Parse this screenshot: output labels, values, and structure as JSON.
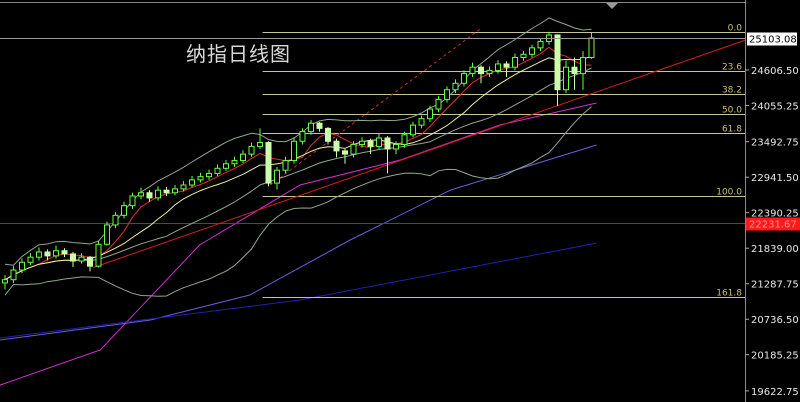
{
  "chart_data": {
    "type": "candlestick",
    "title": "纳指日线图",
    "ylim": [
      19500,
      25450
    ],
    "y_ticks": [
      "24606.50",
      "24055.25",
      "23492.75",
      "22941.50",
      "22390.25",
      "21839.00",
      "21287.75",
      "20736.50",
      "20185.25",
      "19622.75"
    ],
    "current_price": "25103.08",
    "marked_price": "22231.67",
    "candles": [
      [
        21300,
        21420,
        21200,
        21350
      ],
      [
        21350,
        21560,
        21300,
        21500
      ],
      [
        21500,
        21680,
        21450,
        21620
      ],
      [
        21620,
        21760,
        21580,
        21700
      ],
      [
        21700,
        21850,
        21650,
        21780
      ],
      [
        21780,
        21820,
        21650,
        21720
      ],
      [
        21720,
        21880,
        21680,
        21800
      ],
      [
        21800,
        21840,
        21700,
        21750
      ],
      [
        21750,
        21780,
        21550,
        21640
      ],
      [
        21640,
        21760,
        21600,
        21700
      ],
      [
        21700,
        21720,
        21480,
        21560
      ],
      [
        21560,
        21950,
        21540,
        21900
      ],
      [
        21900,
        22250,
        21880,
        22200
      ],
      [
        22200,
        22400,
        22150,
        22350
      ],
      [
        22350,
        22560,
        22300,
        22500
      ],
      [
        22500,
        22700,
        22450,
        22650
      ],
      [
        22650,
        22780,
        22600,
        22700
      ],
      [
        22700,
        22740,
        22560,
        22620
      ],
      [
        22620,
        22800,
        22580,
        22740
      ],
      [
        22740,
        22790,
        22650,
        22700
      ],
      [
        22700,
        22820,
        22660,
        22760
      ],
      [
        22760,
        22880,
        22720,
        22820
      ],
      [
        22820,
        22960,
        22780,
        22900
      ],
      [
        22900,
        23010,
        22860,
        22950
      ],
      [
        22950,
        23060,
        22900,
        23000
      ],
      [
        23000,
        23140,
        22960,
        23080
      ],
      [
        23080,
        23210,
        23040,
        23150
      ],
      [
        23150,
        23260,
        23100,
        23200
      ],
      [
        23200,
        23360,
        23160,
        23300
      ],
      [
        23300,
        23480,
        23260,
        23420
      ],
      [
        23420,
        23700,
        23380,
        23480
      ],
      [
        23480,
        23500,
        22800,
        22850
      ],
      [
        22850,
        23100,
        22750,
        23050
      ],
      [
        23050,
        23260,
        23000,
        23200
      ],
      [
        23200,
        23560,
        23150,
        23500
      ],
      [
        23500,
        23700,
        23450,
        23650
      ],
      [
        23650,
        23830,
        23600,
        23780
      ],
      [
        23780,
        23800,
        23650,
        23700
      ],
      [
        23700,
        23720,
        23450,
        23500
      ],
      [
        23500,
        23540,
        23250,
        23350
      ],
      [
        23350,
        23380,
        23150,
        23300
      ],
      [
        23300,
        23500,
        23250,
        23450
      ],
      [
        23450,
        23560,
        23400,
        23500
      ],
      [
        23500,
        23540,
        23300,
        23420
      ],
      [
        23420,
        23620,
        23380,
        23550
      ],
      [
        23550,
        23580,
        23000,
        23380
      ],
      [
        23380,
        23500,
        23300,
        23450
      ],
      [
        23450,
        23650,
        23400,
        23600
      ],
      [
        23600,
        23800,
        23560,
        23750
      ],
      [
        23750,
        23900,
        23700,
        23850
      ],
      [
        23850,
        24050,
        23800,
        24000
      ],
      [
        24000,
        24200,
        23950,
        24150
      ],
      [
        24150,
        24350,
        24100,
        24300
      ],
      [
        24300,
        24460,
        24250,
        24400
      ],
      [
        24400,
        24600,
        24350,
        24550
      ],
      [
        24550,
        24720,
        24500,
        24650
      ],
      [
        24650,
        24680,
        24400,
        24550
      ],
      [
        24550,
        24660,
        24500,
        24600
      ],
      [
        24600,
        24760,
        24550,
        24700
      ],
      [
        24700,
        24740,
        24500,
        24650
      ],
      [
        24650,
        24860,
        24600,
        24800
      ],
      [
        24800,
        24900,
        24750,
        24850
      ],
      [
        24850,
        25000,
        24800,
        24950
      ],
      [
        24950,
        25100,
        24900,
        25050
      ],
      [
        25050,
        25200,
        25000,
        25150
      ],
      [
        25150,
        25160,
        24050,
        24300
      ],
      [
        24300,
        24750,
        24250,
        24650
      ],
      [
        24650,
        24800,
        24300,
        24550
      ],
      [
        24550,
        24900,
        24300,
        24800
      ],
      [
        24800,
        25180,
        24780,
        25103
      ]
    ],
    "fibonacci": {
      "high": 25200,
      "low": 22650,
      "start_bar": 30.3,
      "levels": [
        {
          "label": "0.0",
          "ratio": 0
        },
        {
          "label": "23.6",
          "ratio": 0.236
        },
        {
          "label": "38.2",
          "ratio": 0.382
        },
        {
          "label": "50.0",
          "ratio": 0.5
        },
        {
          "label": "61.8",
          "ratio": 0.618
        },
        {
          "label": "100.0",
          "ratio": 1
        },
        {
          "label": "161.8",
          "ratio": 1.618
        }
      ]
    },
    "moving_averages": [
      {
        "period": 5,
        "color": "#e0302a"
      },
      {
        "period": 10,
        "color": "#f2eea0"
      }
    ],
    "bollinger": {
      "period": 20,
      "k": 2,
      "color": "#8fa88f"
    },
    "long_lines": [
      {
        "color": "#d030d0",
        "points": [
          [
            -0.6,
            19714
          ],
          [
            11.2,
            20258
          ],
          [
            22.9,
            21888
          ],
          [
            34.7,
            22820
          ],
          [
            46.5,
            23208
          ],
          [
            58.2,
            23752
          ],
          [
            69.6,
            24094
          ]
        ]
      },
      {
        "color": "#6a5fd8",
        "points": [
          [
            -0.6,
            20413
          ],
          [
            17.1,
            20724
          ],
          [
            28.8,
            21112
          ],
          [
            40.6,
            21966
          ],
          [
            52.4,
            22742
          ],
          [
            69.6,
            23441
          ]
        ]
      },
      {
        "color": "#2020b0",
        "points": [
          [
            -0.6,
            20444
          ],
          [
            34.7,
            21034
          ],
          [
            69.6,
            21919
          ]
        ]
      }
    ],
    "trend_lines": [
      {
        "color": "#d02020",
        "dash": false,
        "points": [
          [
            10.4,
            21540
          ],
          [
            87.1,
            25070
          ]
        ]
      },
      {
        "color": "#c03030",
        "dash": true,
        "points": [
          [
            31.2,
            22820
          ],
          [
            56,
            25250
          ]
        ]
      }
    ],
    "colors": {
      "up": "#66ff44",
      "down": "#ccffaa",
      "fib": "#c8c49a",
      "fib_label": "#c8c070",
      "axis_text": "#e8e8e8",
      "marked": "#ff1a1a"
    }
  }
}
